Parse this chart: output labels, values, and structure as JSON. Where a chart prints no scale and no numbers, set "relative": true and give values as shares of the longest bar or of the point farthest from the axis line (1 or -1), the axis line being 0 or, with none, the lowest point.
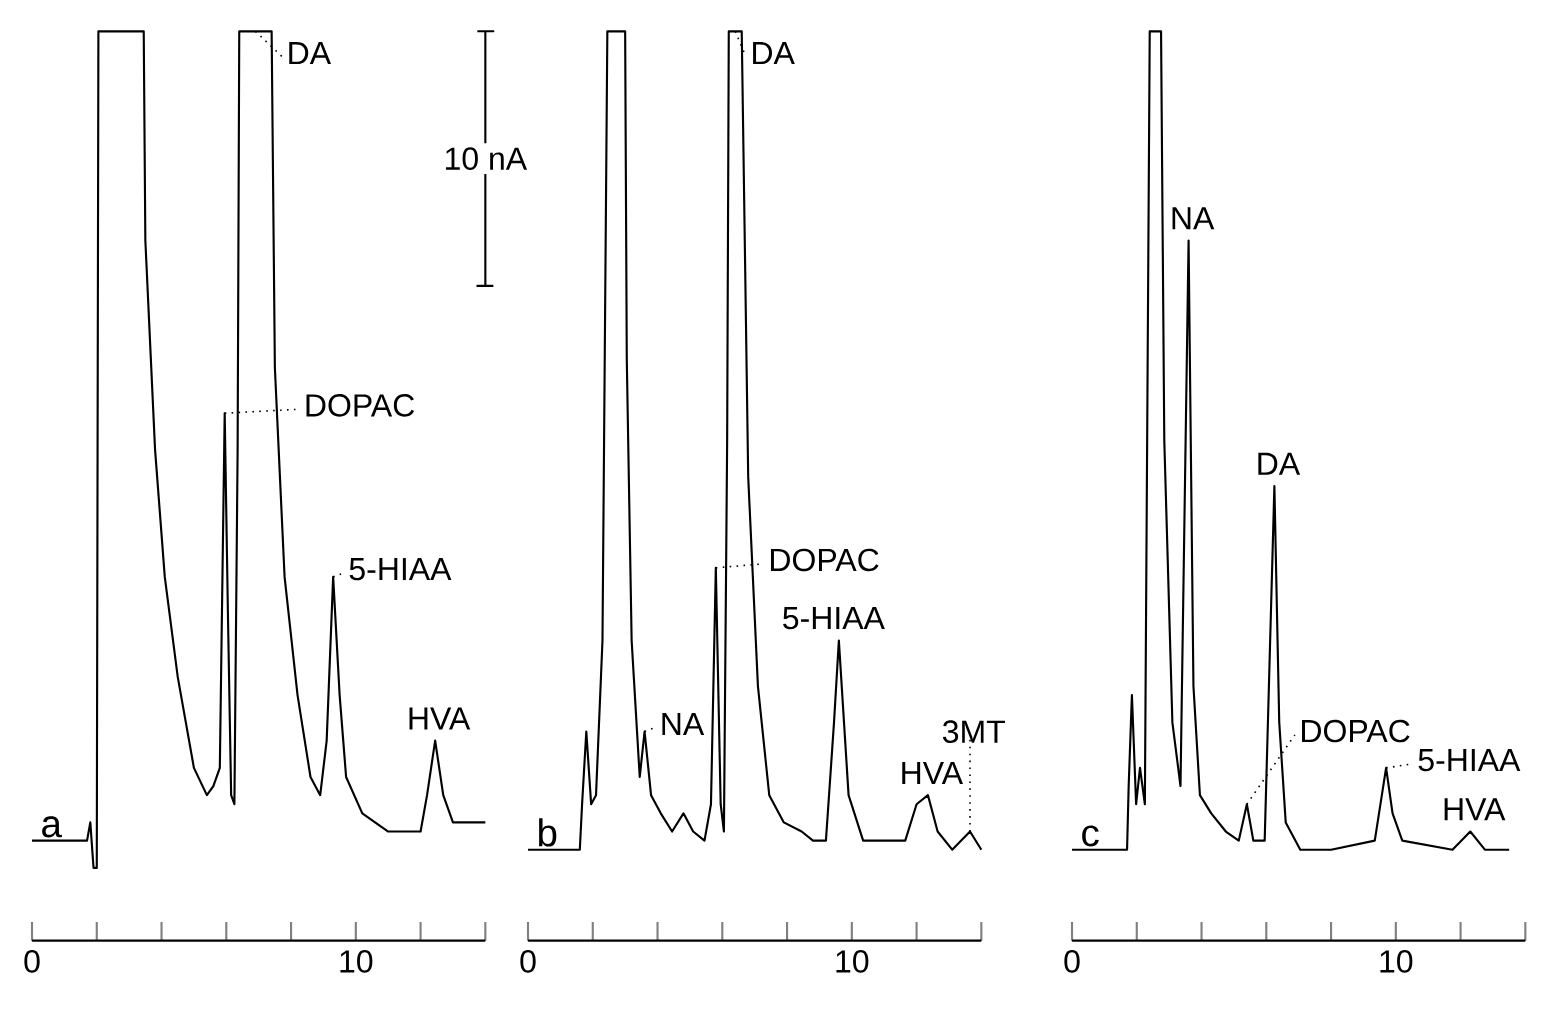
{
  "chart_data": [
    {
      "type": "line",
      "title": "a",
      "relative": true,
      "color": "#000000",
      "tick_labels": "x",
      "xlim": [
        0,
        14
      ],
      "xticks": [
        0,
        {
          "value": 2,
          "label": null
        },
        {
          "value": 4,
          "label": null
        },
        {
          "value": 6,
          "label": null
        },
        {
          "value": 8,
          "label": null
        },
        10,
        {
          "value": 12,
          "label": null
        },
        {
          "value": 14,
          "label": null
        }
      ],
      "x": [
        0,
        1.7,
        1.8,
        1.9,
        2.0,
        2.05,
        3.45,
        3.5,
        3.8,
        4.1,
        4.5,
        5.0,
        5.4,
        5.6,
        5.8,
        5.95,
        6.05,
        6.15,
        6.25,
        6.35,
        6.4,
        7.4,
        7.5,
        7.8,
        8.2,
        8.6,
        8.9,
        9.1,
        9.3,
        9.5,
        9.7,
        10.2,
        11,
        12,
        12.2,
        12.45,
        12.7,
        13.0,
        14
      ],
      "values": [
        0.11,
        0.11,
        0.13,
        0.08,
        0.08,
        1,
        1,
        0.77,
        0.54,
        0.4,
        0.29,
        0.19,
        0.16,
        0.17,
        0.19,
        0.58,
        0.36,
        0.16,
        0.15,
        0.54,
        1,
        1,
        0.63,
        0.4,
        0.27,
        0.18,
        0.16,
        0.22,
        0.4,
        0.27,
        0.18,
        0.14,
        0.12,
        0.12,
        0.16,
        0.22,
        0.16,
        0.13,
        0.13
      ],
      "annotations": [
        {
          "text": "DA",
          "x": 6.9,
          "y": 1
        },
        {
          "text": "DOPAC",
          "x": 5.95,
          "y": 0.58
        },
        {
          "text": "5-HIAA",
          "x": 9.3,
          "y": 0.4
        },
        {
          "text": "HVA",
          "x": 12.45,
          "y": 0.22
        },
        "10 nA"
      ]
    },
    {
      "type": "line",
      "title": "b",
      "relative": true,
      "color": "#000000",
      "tick_labels": "x",
      "xlim": [
        0,
        14
      ],
      "xticks": [
        0,
        {
          "value": 2,
          "label": null
        },
        {
          "value": 4,
          "label": null
        },
        {
          "value": 6,
          "label": null
        },
        {
          "value": 8,
          "label": null
        },
        10,
        {
          "value": 12,
          "label": null
        },
        {
          "value": 14,
          "label": null
        }
      ],
      "x": [
        0,
        1.6,
        1.67,
        1.8,
        1.95,
        2.1,
        2.3,
        2.45,
        3.0,
        3.05,
        3.2,
        3.45,
        3.6,
        3.8,
        4.1,
        4.45,
        4.8,
        5.1,
        5.45,
        5.65,
        5.8,
        5.95,
        6.05,
        6.15,
        6.2,
        6.6,
        6.8,
        7.1,
        7.45,
        7.9,
        8.45,
        8.8,
        9.2,
        9.45,
        9.6,
        9.9,
        10.35,
        11.65,
        12.0,
        12.35,
        12.65,
        13.1,
        13.65,
        14.0
      ],
      "values": [
        0.1,
        0.1,
        0.15,
        0.23,
        0.15,
        0.16,
        0.33,
        1,
        1,
        0.64,
        0.33,
        0.18,
        0.23,
        0.16,
        0.14,
        0.12,
        0.14,
        0.12,
        0.11,
        0.15,
        0.41,
        0.15,
        0.12,
        0.55,
        1,
        1,
        0.51,
        0.28,
        0.16,
        0.13,
        0.12,
        0.11,
        0.11,
        0.24,
        0.33,
        0.16,
        0.11,
        0.11,
        0.15,
        0.16,
        0.12,
        0.1,
        0.12,
        0.1
      ],
      "annotations": [
        {
          "text": "DA",
          "x": 6.4,
          "y": 1
        },
        {
          "text": "NA",
          "x": 3.6,
          "y": 0.23
        },
        {
          "text": "DOPAC",
          "x": 5.8,
          "y": 0.41
        },
        {
          "text": "5-HIAA",
          "x": 9.6,
          "y": 0.33
        },
        {
          "text": "HVA",
          "x": 12.35,
          "y": 0.16
        },
        {
          "text": "3MT",
          "x": 13.65,
          "y": 0.12
        }
      ]
    },
    {
      "type": "line",
      "title": "c",
      "relative": true,
      "color": "#000000",
      "tick_labels": "x",
      "xlim": [
        0,
        14
      ],
      "xticks": [
        0,
        {
          "value": 2,
          "label": null
        },
        {
          "value": 4,
          "label": null
        },
        {
          "value": 6,
          "label": null
        },
        {
          "value": 8,
          "label": null
        },
        10,
        {
          "value": 12,
          "label": null
        },
        {
          "value": 14,
          "label": null
        }
      ],
      "x": [
        0,
        1.7,
        1.75,
        1.85,
        1.98,
        2.1,
        2.25,
        2.4,
        2.75,
        2.85,
        3.1,
        3.35,
        3.6,
        3.75,
        3.95,
        4.3,
        4.75,
        5.15,
        5.4,
        5.6,
        5.95,
        6.15,
        6.25,
        6.4,
        6.6,
        7.05,
        8.0,
        9.35,
        9.7,
        9.9,
        10.2,
        11.75,
        12.3,
        12.75,
        13.5
      ],
      "values": [
        0.1,
        0.1,
        0.17,
        0.27,
        0.15,
        0.19,
        0.15,
        1,
        1,
        0.55,
        0.24,
        0.17,
        0.77,
        0.28,
        0.16,
        0.14,
        0.12,
        0.11,
        0.15,
        0.11,
        0.11,
        0.37,
        0.5,
        0.24,
        0.13,
        0.1,
        0.1,
        0.11,
        0.19,
        0.14,
        0.11,
        0.1,
        0.12,
        0.1,
        0.1
      ],
      "annotations": [
        {
          "text": "NA",
          "x": 3.6,
          "y": 0.77
        },
        {
          "text": "DA",
          "x": 6.25,
          "y": 0.5
        },
        {
          "text": "DOPAC",
          "x": 5.4,
          "y": 0.15
        },
        {
          "text": "5-HIAA",
          "x": 9.7,
          "y": 0.19
        },
        {
          "text": "HVA",
          "x": 12.3,
          "y": 0.12
        }
      ]
    }
  ]
}
